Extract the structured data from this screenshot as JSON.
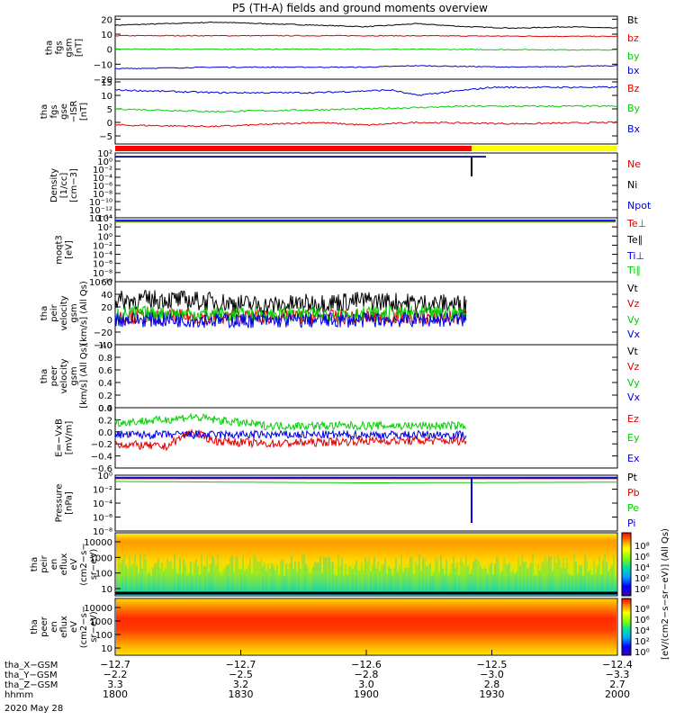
{
  "title": "P5 (TH-A) fields and ground moments overview",
  "colors": {
    "black": "#000000",
    "red": "#e00000",
    "green": "#00d000",
    "blue": "#0000e0",
    "yellow": "#ffff00",
    "bar_red": "#ff0000"
  },
  "chart_data": [
    {
      "type": "line",
      "panel": "fgs",
      "ylabel": [
        "tha",
        "fgs",
        "gsm",
        "[nT]"
      ],
      "ylim": [
        -20,
        22
      ],
      "yticks": [
        "20",
        "10",
        "0",
        "−10",
        "−20"
      ],
      "ytick_values": [
        20,
        10,
        0,
        -10,
        -20
      ],
      "series": [
        {
          "name": "Bt",
          "color": "black",
          "x": [
            0,
            0.1,
            0.2,
            0.3,
            0.4,
            0.5,
            0.6,
            0.7,
            0.8,
            0.9,
            1.0
          ],
          "values": [
            16,
            17,
            18,
            17,
            16,
            15,
            17,
            15,
            14,
            15,
            14
          ]
        },
        {
          "name": "bz",
          "color": "red",
          "x": [
            0,
            0.5,
            1.0
          ],
          "values": [
            9,
            9,
            8.5
          ]
        },
        {
          "name": "by",
          "color": "green",
          "x": [
            0,
            0.5,
            1.0
          ],
          "values": [
            0,
            0,
            -0.5
          ]
        },
        {
          "name": "bx",
          "color": "blue",
          "x": [
            0,
            0.2,
            0.5,
            0.6,
            0.8,
            1.0
          ],
          "values": [
            -13,
            -12,
            -12,
            -11,
            -12,
            -11
          ]
        }
      ]
    },
    {
      "type": "line",
      "panel": "fgs_gse",
      "ylabel": [
        "tha",
        "fgs",
        "gse",
        "−ISR",
        "[nT]"
      ],
      "ylim": [
        -8,
        16
      ],
      "yticks": [
        "15",
        "10",
        "5",
        "0",
        "−5"
      ],
      "ytick_values": [
        15,
        10,
        5,
        0,
        -5
      ],
      "series": [
        {
          "name": "Bz",
          "color": "red",
          "x": [
            0,
            0.2,
            0.4,
            0.5,
            0.6,
            0.8,
            1.0
          ],
          "values": [
            -1,
            -1.5,
            0,
            -1,
            0,
            -0.5,
            0
          ]
        },
        {
          "name": "By",
          "color": "green",
          "x": [
            0,
            0.2,
            0.5,
            0.7,
            1.0
          ],
          "values": [
            5,
            4,
            5,
            6,
            6
          ]
        },
        {
          "name": "Bx",
          "color": "blue",
          "x": [
            0,
            0.2,
            0.4,
            0.55,
            0.6,
            0.75,
            1.0
          ],
          "values": [
            12,
            11,
            11,
            12,
            10,
            13,
            13
          ]
        }
      ]
    },
    {
      "type": "line",
      "panel": "density",
      "log": true,
      "ylabel": [
        "Density",
        "[1/cc]",
        "[cm−3]"
      ],
      "ylim": [
        -14,
        2
      ],
      "yticks": [
        "10²",
        "10⁰",
        "10⁻²",
        "10⁻⁴",
        "10⁻⁶",
        "10⁻⁸",
        "10⁻¹⁰",
        "10⁻¹²",
        "10⁻¹⁴"
      ],
      "ytick_values": [
        2,
        0,
        -2,
        -4,
        -6,
        -8,
        -10,
        -12,
        -14
      ],
      "series": [
        {
          "name": "Ne",
          "color": "red",
          "x": [
            0,
            0.74
          ],
          "values": [
            1.2,
            1.2
          ]
        },
        {
          "name": "Ni",
          "color": "black",
          "x": [
            0,
            0.74
          ],
          "values": [
            1.0,
            1.0
          ]
        },
        {
          "name": "Npot",
          "color": "blue",
          "x": [
            0,
            0.74
          ],
          "values": [
            1.1,
            1.1
          ]
        }
      ]
    },
    {
      "type": "line",
      "panel": "temps",
      "log": true,
      "ylabel": [
        "moqt3",
        "[eV]"
      ],
      "ylim": [
        -10,
        4
      ],
      "yticks": [
        "10⁴",
        "10²",
        "10⁰",
        "10⁻²",
        "10⁻⁴",
        "10⁻⁶",
        "10⁻⁸",
        "10⁻¹⁰"
      ],
      "ytick_values": [
        4,
        2,
        0,
        -2,
        -4,
        -6,
        -8,
        -10
      ],
      "series": [
        {
          "name": "Te⊥",
          "color": "red",
          "x": [
            0,
            1
          ],
          "values": [
            3.1,
            3.1
          ]
        },
        {
          "name": "Te∥",
          "color": "black",
          "x": [
            0,
            1
          ],
          "values": [
            3.3,
            3.3
          ]
        },
        {
          "name": "Ti⊥",
          "color": "blue",
          "x": [
            0,
            1
          ],
          "values": [
            3.5,
            3.5
          ]
        },
        {
          "name": "Ti∥",
          "color": "green",
          "x": [
            0,
            1
          ],
          "values": [
            3.2,
            3.2
          ]
        }
      ]
    },
    {
      "type": "line",
      "panel": "peir_velocity",
      "ylabel": [
        "tha",
        "peir",
        "velocity",
        "gsm",
        "[km/s] (All Qs)"
      ],
      "ylim": [
        -40,
        60
      ],
      "yticks": [
        "60",
        "40",
        "20",
        "0",
        "−20",
        "−40"
      ],
      "ytick_values": [
        60,
        40,
        20,
        0,
        -20,
        -40
      ],
      "series": [
        {
          "name": "Vt",
          "color": "black",
          "x": [
            0,
            0.1,
            0.2,
            0.3,
            0.4,
            0.5,
            0.6,
            0.7
          ],
          "values": [
            30,
            32,
            28,
            22,
            26,
            30,
            26,
            24
          ]
        },
        {
          "name": "Vz",
          "color": "red",
          "x": [
            0,
            0.3,
            0.7
          ],
          "values": [
            5,
            4,
            4
          ]
        },
        {
          "name": "Vy",
          "color": "green",
          "x": [
            0,
            0.3,
            0.7
          ],
          "values": [
            10,
            8,
            10
          ]
        },
        {
          "name": "Vx",
          "color": "blue",
          "x": [
            0,
            0.3,
            0.7
          ],
          "values": [
            0,
            -2,
            0
          ]
        }
      ]
    },
    {
      "type": "line",
      "panel": "peer_velocity",
      "ylabel": [
        "tha",
        "peer",
        "velocity",
        "gsm",
        "[km/s] (All Qs)"
      ],
      "ylim": [
        0,
        1
      ],
      "yticks": [
        "1.0",
        "0.8",
        "0.6",
        "0.4",
        "0.2",
        "0.0"
      ],
      "ytick_values": [
        1.0,
        0.8,
        0.6,
        0.4,
        0.2,
        0.0
      ],
      "series": [
        {
          "name": "Vt",
          "color": "black",
          "x": [],
          "values": []
        },
        {
          "name": "Vz",
          "color": "red",
          "x": [],
          "values": []
        },
        {
          "name": "Vy",
          "color": "green",
          "x": [],
          "values": []
        },
        {
          "name": "Vx",
          "color": "blue",
          "x": [],
          "values": []
        }
      ]
    },
    {
      "type": "line",
      "panel": "efield",
      "ylabel": [
        "E=−VxB",
        "[mV/m]"
      ],
      "ylim": [
        -0.6,
        0.4
      ],
      "yticks": [
        "0.4",
        "0.2",
        "0.0",
        "−0.2",
        "−0.4",
        "−0.6"
      ],
      "ytick_values": [
        0.4,
        0.2,
        0.0,
        -0.2,
        -0.4,
        -0.6
      ],
      "series": [
        {
          "name": "Ez",
          "color": "red",
          "x": [
            0,
            0.1,
            0.15,
            0.2,
            0.3,
            0.5,
            0.7
          ],
          "values": [
            -0.2,
            -0.25,
            0.0,
            -0.15,
            -0.2,
            -0.15,
            -0.15
          ]
        },
        {
          "name": "Ey",
          "color": "green",
          "x": [
            0,
            0.1,
            0.15,
            0.3,
            0.5,
            0.7
          ],
          "values": [
            0.15,
            0.2,
            0.25,
            0.1,
            0.1,
            0.1
          ]
        },
        {
          "name": "Ex",
          "color": "blue",
          "x": [
            0,
            0.3,
            0.7
          ],
          "values": [
            -0.05,
            -0.05,
            -0.05
          ]
        }
      ]
    },
    {
      "type": "line",
      "panel": "pressure",
      "log": true,
      "ylabel": [
        "Pressure",
        "[nPa]"
      ],
      "ylim": [
        -8,
        0
      ],
      "yticks": [
        "10⁰",
        "10⁻²",
        "10⁻⁴",
        "10⁻⁶",
        "10⁻⁸"
      ],
      "ytick_values": [
        0,
        -2,
        -4,
        -6,
        -8
      ],
      "series": [
        {
          "name": "Pt",
          "color": "black",
          "x": [
            0,
            1
          ],
          "values": [
            -0.4,
            -0.4
          ]
        },
        {
          "name": "Pb",
          "color": "red",
          "x": [
            0,
            1
          ],
          "values": [
            -0.5,
            -0.5
          ]
        },
        {
          "name": "Pe",
          "color": "green",
          "x": [
            0,
            0.5,
            1
          ],
          "values": [
            -0.9,
            -1.1,
            -1.0
          ]
        },
        {
          "name": "Pi",
          "color": "blue",
          "x": [
            0,
            1
          ],
          "values": [
            -0.3,
            -0.3
          ]
        }
      ]
    },
    {
      "type": "heatmap",
      "panel": "peir_eflux",
      "ylabel": [
        "tha",
        "peir",
        "en",
        "eflux",
        "eV",
        "(cm2−s−",
        "sr−eV)"
      ],
      "yticks": [
        "10000",
        "1000",
        "100",
        "10"
      ]
    },
    {
      "type": "heatmap",
      "panel": "peer_eflux",
      "ylabel": [
        "tha",
        "peer",
        "en",
        "eflux",
        "eV",
        "(cm2−s−",
        "sr−eV)"
      ],
      "yticks": [
        "10000",
        "1000",
        "100",
        "10"
      ]
    }
  ],
  "colorbar": {
    "label": "[eV/(cm2−s−sr−eV)] (All Qs)",
    "ticks_top": [
      "10⁸",
      "10⁶",
      "10⁴",
      "10²",
      "10⁰"
    ],
    "ticks_bottom": [
      "10⁸",
      "10⁶",
      "10⁴",
      "10²",
      "10⁰"
    ]
  },
  "xaxis": {
    "ticks": [
      "−12.7",
      "−12.7",
      "−12.6",
      "−12.5",
      "−12.4"
    ],
    "rows": [
      {
        "label": "tha_X−GSM",
        "values": [
          "−12.7",
          "−12.7",
          "−12.6",
          "−12.5",
          "−12.4"
        ]
      },
      {
        "label": "tha_Y−GSM",
        "values": [
          "−2.2",
          "−2.5",
          "−2.8",
          "−3.0",
          "−3.3"
        ]
      },
      {
        "label": "tha_Z−GSM",
        "values": [
          "3.3",
          "3.2",
          "3.0",
          "2.8",
          "2.7"
        ]
      },
      {
        "label": "hhmm",
        "values": [
          "1800",
          "1830",
          "1900",
          "1930",
          "2000"
        ]
      }
    ],
    "date": "2020 May 28"
  }
}
